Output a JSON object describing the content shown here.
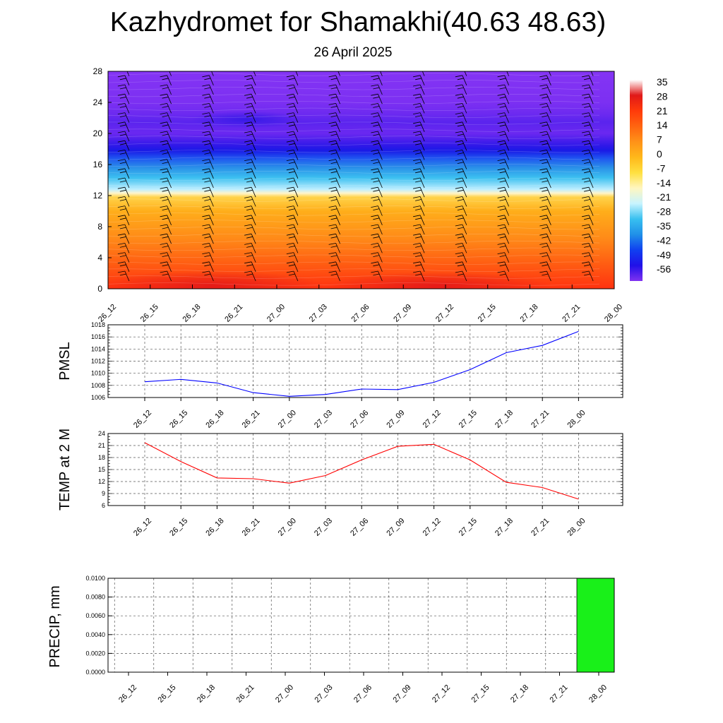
{
  "title": "Kazhydromet for Shamakhi(40.63 48.63)",
  "subtitle": "26 April 2025",
  "chart_data": [
    {
      "type": "heatmap",
      "name": "temperature-height-section",
      "x": [
        "26_12",
        "26_15",
        "26_18",
        "26_21",
        "27_00",
        "27_03",
        "27_06",
        "27_09",
        "27_12",
        "27_15",
        "27_18",
        "27_21",
        "28_00"
      ],
      "y_ticks": [
        0,
        4,
        8,
        12,
        16,
        20,
        24,
        28
      ],
      "ylim": [
        0,
        28
      ],
      "colorbar": {
        "labels": [
          "35",
          "28",
          "21",
          "14",
          "7",
          "0",
          "-7",
          "-14",
          "-21",
          "-28",
          "-35",
          "-42",
          "-49",
          "-56"
        ],
        "colors": [
          "#ffffff",
          "#e01818",
          "#ff3a0a",
          "#ff6410",
          "#ff9218",
          "#ffb81a",
          "#ffe040",
          "#fff6c0",
          "#c8f4ff",
          "#38c0f0",
          "#2090e8",
          "#1040f0",
          "#2010e8",
          "#8032f0"
        ]
      },
      "profile": [
        {
          "h": 0,
          "c": "#ff3210"
        },
        {
          "h": 3,
          "c": "#ff5a12"
        },
        {
          "h": 6.5,
          "c": "#ff8a18"
        },
        {
          "h": 10,
          "c": "#ffae1a"
        },
        {
          "h": 11.8,
          "c": "#ffd34a"
        },
        {
          "h": 12.3,
          "c": "#fff4c8"
        },
        {
          "h": 12.8,
          "c": "#bfefff"
        },
        {
          "h": 14.3,
          "c": "#3cc0f0"
        },
        {
          "h": 15.6,
          "c": "#2a90e8"
        },
        {
          "h": 16.8,
          "c": "#1f55f0"
        },
        {
          "h": 17.8,
          "c": "#1a1ae6"
        },
        {
          "h": 18.4,
          "c": "#2e18e8"
        },
        {
          "h": 20,
          "c": "#6a28f0"
        },
        {
          "h": 21.5,
          "c": "#5a24ee"
        },
        {
          "h": 22.5,
          "c": "#6c2af0"
        },
        {
          "h": 24,
          "c": "#7c30f2"
        },
        {
          "h": 28,
          "c": "#8434f4"
        }
      ],
      "grid": false,
      "legend": "right"
    },
    {
      "type": "line",
      "ylabel": "PMSL",
      "x": [
        "26_12",
        "26_15",
        "26_18",
        "26_21",
        "27_00",
        "27_03",
        "27_06",
        "27_09",
        "27_12",
        "27_15",
        "27_18",
        "27_21",
        "28_00"
      ],
      "y_ticks": [
        1006,
        1008,
        1010,
        1012,
        1014,
        1016,
        1018
      ],
      "ylim": [
        1006,
        1018
      ],
      "series": [
        {
          "values": [
            1008.6,
            1009.0,
            1008.4,
            1006.8,
            1006.2,
            1006.5,
            1007.4,
            1007.3,
            1008.5,
            1010.6,
            1013.4,
            1014.6,
            1016.9
          ],
          "color": "#0000ff"
        }
      ],
      "grid": true
    },
    {
      "type": "line",
      "ylabel": "TEMP at 2 M",
      "x": [
        "26_12",
        "26_15",
        "26_18",
        "26_21",
        "27_00",
        "27_03",
        "27_06",
        "27_09",
        "27_12",
        "27_15",
        "27_18",
        "27_21",
        "28_00"
      ],
      "y_ticks": [
        6,
        9,
        12,
        15,
        18,
        21,
        24
      ],
      "ylim": [
        6,
        24
      ],
      "series": [
        {
          "values": [
            21.7,
            17.0,
            12.9,
            12.7,
            11.6,
            13.5,
            17.4,
            20.8,
            21.3,
            17.4,
            11.8,
            10.5,
            7.6
          ],
          "color": "#ff0000"
        }
      ],
      "grid": true
    },
    {
      "type": "bar",
      "ylabel": "PRECIP, mm",
      "x": [
        "26_12",
        "26_15",
        "26_18",
        "26_21",
        "27_00",
        "27_03",
        "27_06",
        "27_09",
        "27_12",
        "27_15",
        "27_18",
        "27_21",
        "28_00"
      ],
      "y_ticks": [
        "0.0000",
        "0.0020",
        "0.0040",
        "0.0060",
        "0.0080",
        "0.0100"
      ],
      "ylim": [
        0,
        0.01
      ],
      "values": [
        0,
        0,
        0,
        0,
        0,
        0,
        0,
        0,
        0,
        0,
        0,
        0,
        0.01
      ],
      "bar_color": "#19f019",
      "grid": true
    }
  ]
}
